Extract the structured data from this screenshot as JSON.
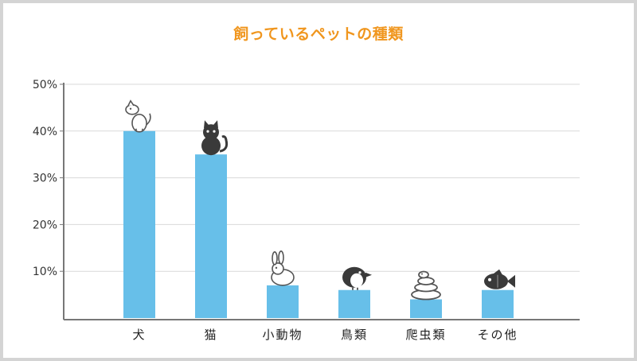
{
  "chart_data": {
    "type": "bar",
    "title": "飼っているペットの種類",
    "xlabel": "",
    "ylabel": "",
    "categories": [
      "犬",
      "猫",
      "小動物",
      "鳥類",
      "爬虫類",
      "その他"
    ],
    "values": [
      40,
      35,
      7,
      6,
      4,
      6
    ],
    "ylim": [
      0,
      50
    ],
    "yticks": [
      10,
      20,
      30,
      40,
      50
    ],
    "ytick_labels": [
      "10%",
      "20%",
      "30%",
      "40%",
      "50%"
    ],
    "grid": true,
    "legend": "none"
  },
  "icons": [
    "dog-icon",
    "cat-icon",
    "rabbit-icon",
    "bird-icon",
    "snake-icon",
    "fish-icon"
  ],
  "colors": {
    "bar": "#67bfe9",
    "title": "#f0961e",
    "grid": "#d9d9d9",
    "axis": "#777777",
    "frame": "#d4d4d4"
  }
}
